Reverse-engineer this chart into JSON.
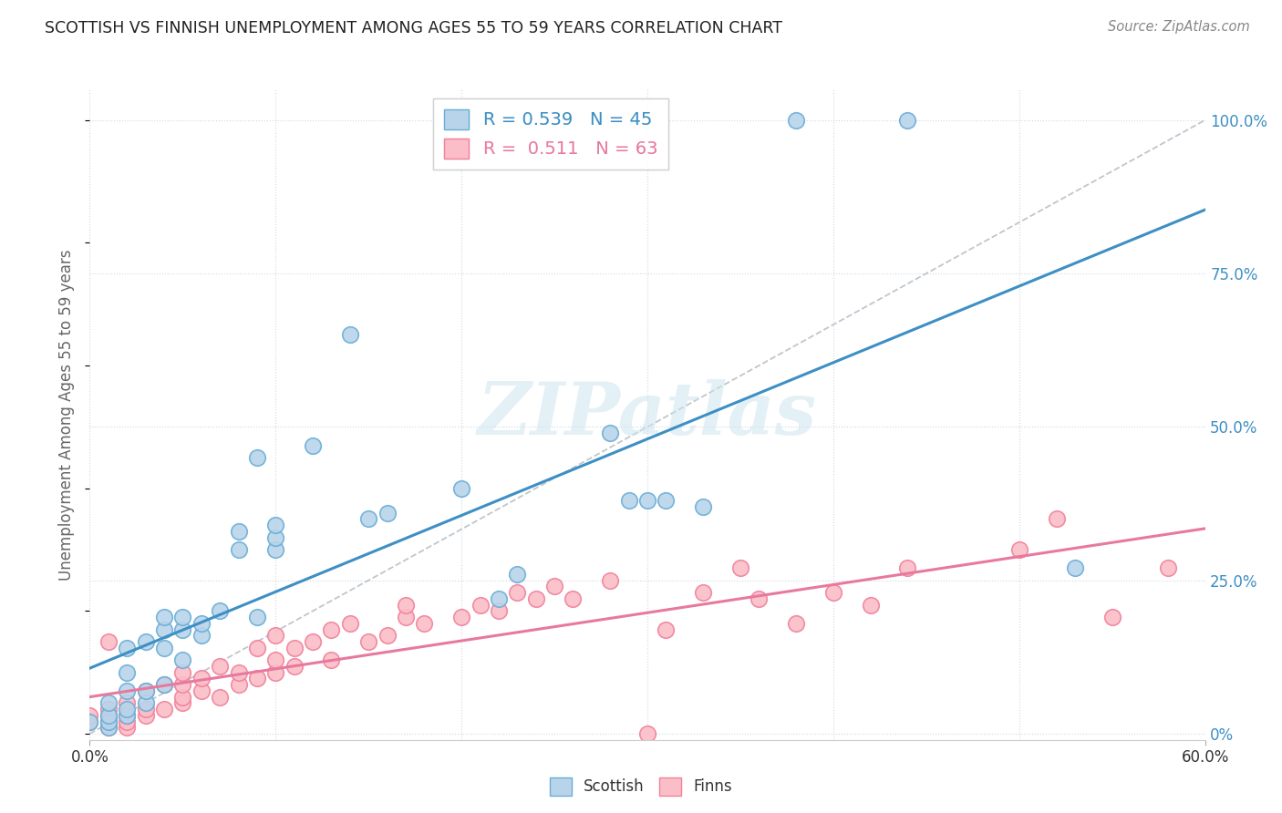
{
  "title": "SCOTTISH VS FINNISH UNEMPLOYMENT AMONG AGES 55 TO 59 YEARS CORRELATION CHART",
  "source": "Source: ZipAtlas.com",
  "ylabel": "Unemployment Among Ages 55 to 59 years",
  "xlim": [
    0.0,
    0.6
  ],
  "ylim": [
    -0.01,
    1.05
  ],
  "legend_R_blue": "0.539",
  "legend_N_blue": "45",
  "legend_R_pink": "0.511",
  "legend_N_pink": "63",
  "legend_label_blue": "Scottish",
  "legend_label_pink": "Finns",
  "blue_scatter_face": "#b8d4ea",
  "blue_scatter_edge": "#6aaed6",
  "pink_scatter_face": "#fbbec8",
  "pink_scatter_edge": "#f0829a",
  "blue_line_color": "#3d8fc4",
  "pink_line_color": "#e8799e",
  "diag_line_color": "#b0b8c0",
  "watermark": "ZIPatlas",
  "blue_x": [
    0.0,
    0.01,
    0.01,
    0.01,
    0.01,
    0.02,
    0.02,
    0.02,
    0.02,
    0.02,
    0.03,
    0.03,
    0.03,
    0.04,
    0.04,
    0.04,
    0.04,
    0.05,
    0.05,
    0.05,
    0.06,
    0.06,
    0.07,
    0.08,
    0.08,
    0.09,
    0.09,
    0.1,
    0.1,
    0.1,
    0.12,
    0.14,
    0.15,
    0.16,
    0.2,
    0.22,
    0.23,
    0.28,
    0.29,
    0.3,
    0.31,
    0.33,
    0.38,
    0.44,
    0.53
  ],
  "blue_y": [
    0.02,
    0.01,
    0.02,
    0.03,
    0.05,
    0.03,
    0.04,
    0.07,
    0.1,
    0.14,
    0.05,
    0.07,
    0.15,
    0.08,
    0.14,
    0.17,
    0.19,
    0.12,
    0.17,
    0.19,
    0.16,
    0.18,
    0.2,
    0.3,
    0.33,
    0.19,
    0.45,
    0.3,
    0.32,
    0.34,
    0.47,
    0.65,
    0.35,
    0.36,
    0.4,
    0.22,
    0.26,
    0.49,
    0.38,
    0.38,
    0.38,
    0.37,
    1.0,
    1.0,
    0.27
  ],
  "pink_x": [
    0.0,
    0.0,
    0.01,
    0.01,
    0.01,
    0.01,
    0.01,
    0.02,
    0.02,
    0.02,
    0.02,
    0.03,
    0.03,
    0.03,
    0.04,
    0.04,
    0.05,
    0.05,
    0.05,
    0.05,
    0.06,
    0.06,
    0.07,
    0.07,
    0.08,
    0.08,
    0.09,
    0.09,
    0.1,
    0.1,
    0.1,
    0.11,
    0.11,
    0.12,
    0.13,
    0.13,
    0.14,
    0.15,
    0.16,
    0.17,
    0.17,
    0.18,
    0.2,
    0.21,
    0.22,
    0.23,
    0.24,
    0.25,
    0.26,
    0.28,
    0.3,
    0.31,
    0.33,
    0.35,
    0.36,
    0.38,
    0.4,
    0.42,
    0.44,
    0.5,
    0.52,
    0.55,
    0.58
  ],
  "pink_y": [
    0.02,
    0.03,
    0.01,
    0.02,
    0.03,
    0.04,
    0.15,
    0.01,
    0.02,
    0.03,
    0.05,
    0.03,
    0.04,
    0.07,
    0.04,
    0.08,
    0.05,
    0.06,
    0.08,
    0.1,
    0.07,
    0.09,
    0.06,
    0.11,
    0.08,
    0.1,
    0.09,
    0.14,
    0.1,
    0.12,
    0.16,
    0.11,
    0.14,
    0.15,
    0.12,
    0.17,
    0.18,
    0.15,
    0.16,
    0.19,
    0.21,
    0.18,
    0.19,
    0.21,
    0.2,
    0.23,
    0.22,
    0.24,
    0.22,
    0.25,
    0.0,
    0.17,
    0.23,
    0.27,
    0.22,
    0.18,
    0.23,
    0.21,
    0.27,
    0.3,
    0.35,
    0.19,
    0.27
  ]
}
